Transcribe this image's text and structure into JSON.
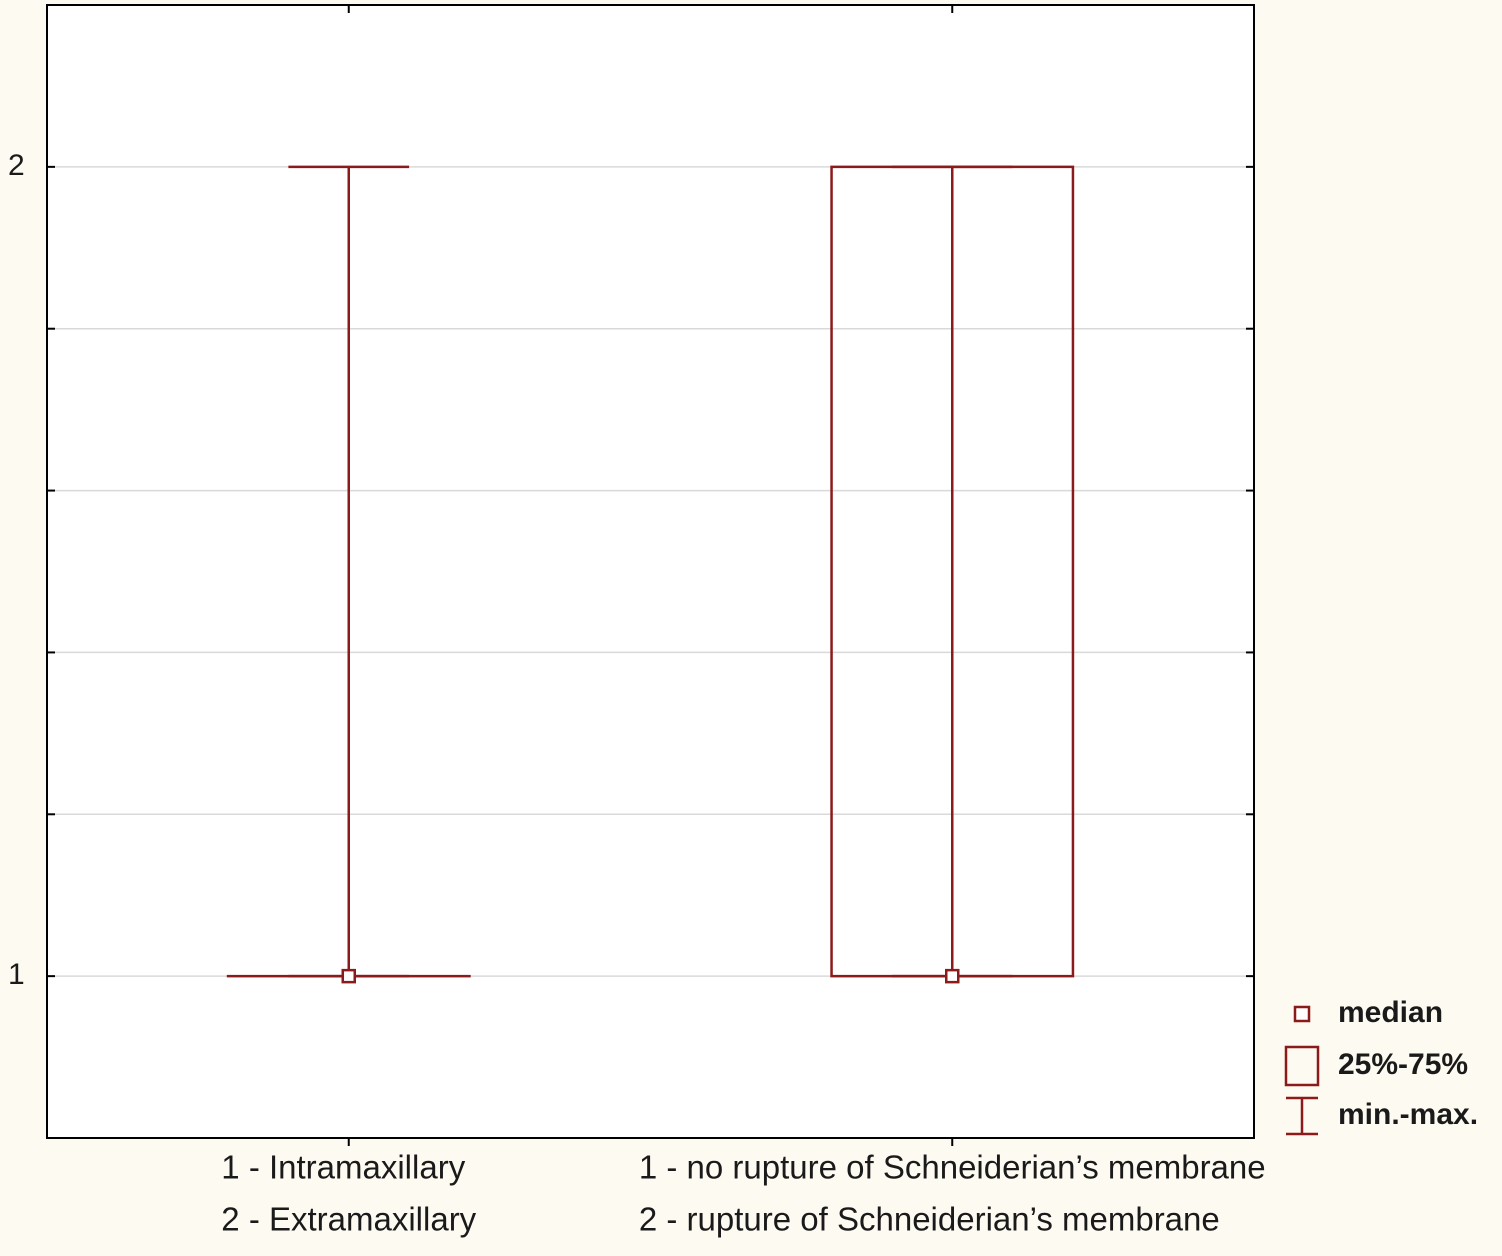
{
  "chart_data": {
    "type": "box",
    "categories": [
      [
        "1 - Intramaxillary",
        "2 - Extramaxillary"
      ],
      [
        "1 - no rupture of Schneiderian’s membrane",
        "2 - rupture of Schneiderian’s membrane"
      ]
    ],
    "min": [
      1,
      1
    ],
    "q1": [
      1,
      1
    ],
    "median": [
      1,
      1
    ],
    "q3": [
      1,
      2
    ],
    "max": [
      2,
      2
    ],
    "color": "#8b1a1a",
    "ylim": [
      0.8,
      2.2
    ],
    "yticks": [
      1,
      2
    ],
    "minor_yticks": [
      1.2,
      1.4,
      1.6,
      1.8
    ],
    "grid": true,
    "legend": {
      "position": "right",
      "entries": [
        "median",
        "25%-75%",
        "min.-max."
      ]
    }
  }
}
